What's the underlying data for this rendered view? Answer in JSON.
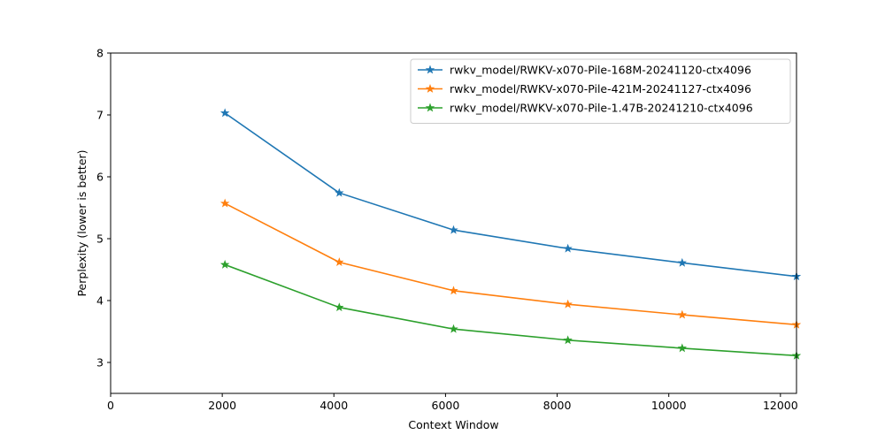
{
  "chart_data": {
    "type": "line",
    "xlabel": "Context Window",
    "ylabel": "Perplexity (lower is better)",
    "xlim": [
      0,
      12288
    ],
    "ylim": [
      2.5,
      8
    ],
    "x_ticks": [
      0,
      2000,
      4000,
      6000,
      8000,
      10000,
      12000
    ],
    "y_ticks": [
      3,
      4,
      5,
      6,
      7,
      8
    ],
    "grid": false,
    "legend_position": "top-right",
    "marker": "star",
    "x": [
      2048,
      4096,
      6144,
      8192,
      10240,
      12288
    ],
    "series": [
      {
        "name": "rwkv_model/RWKV-x070-Pile-168M-20241120-ctx4096",
        "color": "#1f77b4",
        "values": [
          7.03,
          5.74,
          5.14,
          4.84,
          4.61,
          4.39
        ]
      },
      {
        "name": "rwkv_model/RWKV-x070-Pile-421M-20241127-ctx4096",
        "color": "#ff7f0e",
        "values": [
          5.57,
          4.62,
          4.16,
          3.94,
          3.77,
          3.61
        ]
      },
      {
        "name": "rwkv_model/RWKV-x070-Pile-1.47B-20241210-ctx4096",
        "color": "#2ca02c",
        "values": [
          4.58,
          3.89,
          3.54,
          3.36,
          3.23,
          3.11
        ]
      }
    ]
  }
}
